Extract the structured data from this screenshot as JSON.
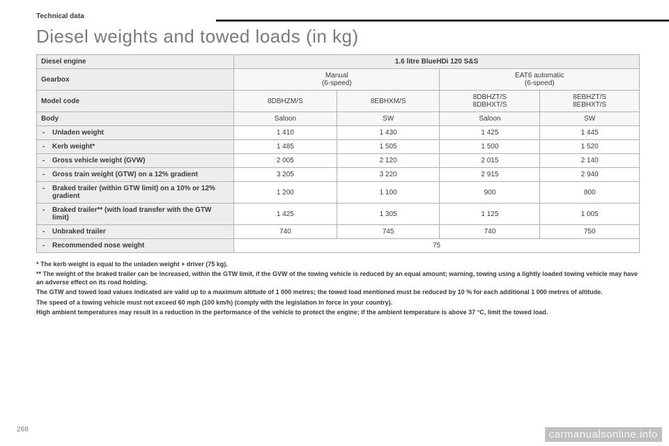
{
  "sectionLabel": "Technical data",
  "title": "Diesel weights and towed loads (in kg)",
  "pageNumber": "268",
  "watermark": "carmanualsonline.info",
  "table": {
    "engineLabel": "Diesel engine",
    "engineValue": "1.6 litre BlueHDi 120 S&S",
    "gearboxLabel": "Gearbox",
    "gearboxManual": "Manual",
    "gearboxManualSub": "(6-speed)",
    "gearboxAuto": "EAT6 automatic",
    "gearboxAutoSub": "(6-speed)",
    "modelCodeLabel": "Model code",
    "modelCodes": [
      "8DBHZM/S",
      "8EBHXM/S",
      "8DBHZT/S\n8DBHXT/S",
      "8EBHZT/S\n8EBHXT/S"
    ],
    "bodyLabel": "Body",
    "bodies": [
      "Saloon",
      "SW",
      "Saloon",
      "SW"
    ],
    "rows": [
      {
        "label": "Unladen weight",
        "values": [
          "1 410",
          "1 430",
          "1 425",
          "1 445"
        ]
      },
      {
        "label": "Kerb weight*",
        "values": [
          "1 485",
          "1 505",
          "1 500",
          "1 520"
        ]
      },
      {
        "label": "Gross vehicle weight (GVW)",
        "values": [
          "2 005",
          "2 120",
          "2 015",
          "2 140"
        ]
      },
      {
        "label": "Gross train weight (GTW) on a 12% gradient",
        "values": [
          "3 205",
          "3 220",
          "2 915",
          "2 940"
        ]
      },
      {
        "label": "Braked trailer (within GTW limit) on a 10% or 12% gradient",
        "values": [
          "1 200",
          "1 100",
          "900",
          "800"
        ]
      },
      {
        "label": "Braked trailer** (with load transfer with the GTW limit)",
        "values": [
          "1 425",
          "1 305",
          "1 125",
          "1 005"
        ]
      },
      {
        "label": "Unbraked trailer",
        "values": [
          "740",
          "745",
          "740",
          "750"
        ]
      },
      {
        "label": "Recommended nose weight",
        "values": [
          "75"
        ],
        "span": 4
      }
    ]
  },
  "footnotes": [
    "* The kerb weight is equal to the unladen weight + driver (75 kg).",
    "** The weight of the braked trailer can be increased, within the GTW limit, if the GVW of the towing vehicle is reduced by an equal amount; warning, towing using a lightly loaded towing vehicle may have an adverse effect on its road holding.",
    "The GTW and towed load values indicated are valid up to a maximum altitude of 1 000 metres; the towed load mentioned must be reduced by 10 % for each additional 1 000 metres of altitude.",
    "The speed of a towing vehicle must not exceed 60 mph (100 km/h) (comply with the legislation in force in your country).",
    "High ambient temperatures may result in a reduction in the performance of the vehicle to protect the engine; if the ambient temperature is above 37 °C, limit the towed load."
  ]
}
